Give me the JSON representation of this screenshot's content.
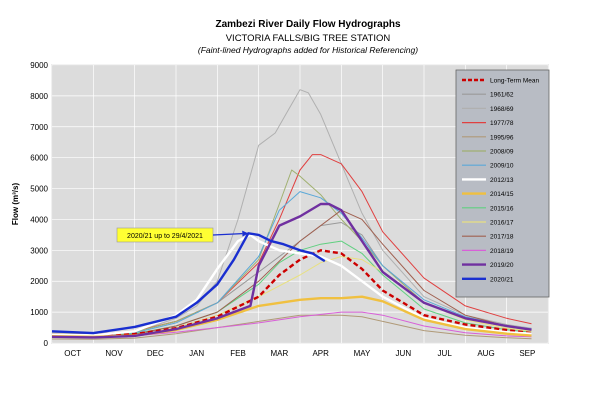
{
  "chart_data": {
    "type": "line",
    "title": "Zambezi River Daily Flow Hydrographs",
    "subtitle": "VICTORIA FALLS/BIG TREE STATION",
    "note": "(Faint-lined Hydrographs added for Historical Referencing)",
    "ylabel": "Flow (m³/s)",
    "xlabel": "",
    "ylim": [
      0,
      9000
    ],
    "yticks": [
      0,
      1000,
      2000,
      3000,
      4000,
      5000,
      6000,
      7000,
      8000,
      9000
    ],
    "months": [
      "OCT",
      "NOV",
      "DEC",
      "JAN",
      "FEB",
      "MAR",
      "APR",
      "MAY",
      "JUN",
      "JUL",
      "AUG",
      "SEP"
    ],
    "grid": true,
    "legend_position": "right",
    "annotation": {
      "text": "2020/21 up to 29/4/2021",
      "points_to_month": 4.75,
      "points_to_value": 3550
    },
    "series": [
      {
        "name": "Long-Term Mean",
        "color": "#cc0000",
        "dashed": true,
        "bold": true,
        "x": [
          0,
          1,
          2,
          3,
          4,
          5,
          5.5,
          6,
          6.5,
          7,
          7.5,
          8,
          9,
          10,
          11,
          11.6
        ],
        "y": [
          250,
          230,
          290,
          480,
          850,
          1500,
          2200,
          2700,
          3000,
          2900,
          2400,
          1700,
          900,
          600,
          420,
          320
        ]
      },
      {
        "name": "1961/62",
        "color": "#9a9a9a",
        "x": [
          0,
          1,
          2,
          3,
          4,
          5,
          6,
          6.5,
          7,
          7.5,
          8,
          9,
          10,
          11,
          11.6
        ],
        "y": [
          350,
          300,
          360,
          700,
          1300,
          2300,
          3300,
          3800,
          3900,
          3500,
          2500,
          1300,
          800,
          550,
          420
        ]
      },
      {
        "name": "1968/69",
        "color": "#b0b0b0",
        "x": [
          0,
          1,
          2,
          3,
          3.5,
          4,
          4.5,
          5,
          5.4,
          5.7,
          6,
          6.2,
          6.5,
          7,
          7.5,
          8,
          9,
          10,
          11,
          11.6
        ],
        "y": [
          280,
          260,
          340,
          800,
          1200,
          2000,
          4000,
          6400,
          6800,
          7500,
          8200,
          8100,
          7400,
          5800,
          4200,
          3000,
          1500,
          900,
          600,
          480
        ]
      },
      {
        "name": "1977/78",
        "color": "#e04040",
        "x": [
          0,
          1,
          2,
          3,
          4,
          5,
          5.5,
          6,
          6.3,
          6.5,
          7,
          7.5,
          8,
          9,
          10,
          11,
          11.6
        ],
        "y": [
          300,
          280,
          380,
          700,
          1300,
          2600,
          4000,
          5600,
          6100,
          6100,
          5800,
          4900,
          3600,
          2100,
          1200,
          800,
          620
        ]
      },
      {
        "name": "1995/96",
        "color": "#b09a78",
        "x": [
          0,
          1,
          2,
          3,
          4,
          5,
          6,
          7,
          7.5,
          8,
          9,
          10,
          11,
          11.6
        ],
        "y": [
          130,
          120,
          160,
          300,
          500,
          700,
          900,
          900,
          850,
          700,
          400,
          250,
          170,
          140
        ]
      },
      {
        "name": "2008/09",
        "color": "#a0b070",
        "x": [
          0,
          1,
          2,
          3,
          4,
          5,
          5.5,
          5.8,
          6,
          6.5,
          7,
          7.5,
          8,
          9,
          10,
          11,
          11.6
        ],
        "y": [
          300,
          280,
          360,
          700,
          1300,
          2700,
          4500,
          5600,
          5400,
          4800,
          4000,
          3300,
          2500,
          1300,
          800,
          520,
          420
        ]
      },
      {
        "name": "2009/10",
        "color": "#5aa8d8",
        "x": [
          0,
          1,
          2,
          3,
          4,
          5,
          5.5,
          6,
          6.5,
          7,
          7.5,
          8,
          9,
          10,
          11,
          11.6
        ],
        "y": [
          280,
          260,
          330,
          650,
          1300,
          2800,
          4300,
          4900,
          4700,
          4200,
          3400,
          2500,
          1400,
          850,
          560,
          460
        ]
      },
      {
        "name": "2012/13",
        "color": "#ffffff",
        "bold": true,
        "x": [
          0,
          1,
          2,
          3,
          3.5,
          4,
          4.5,
          4.8,
          5,
          5.5,
          6,
          6.5,
          7,
          7.5,
          8,
          9,
          10,
          11,
          11.6
        ],
        "y": [
          270,
          250,
          380,
          900,
          1400,
          2400,
          3300,
          3500,
          3300,
          3000,
          2900,
          2800,
          2500,
          2000,
          1500,
          800,
          500,
          350,
          300
        ]
      },
      {
        "name": "2014/15",
        "color": "#f0c040",
        "bold": true,
        "x": [
          0,
          1,
          2,
          3,
          4,
          5,
          6,
          6.5,
          7,
          7.5,
          8,
          9,
          10,
          11,
          11.6
        ],
        "y": [
          220,
          200,
          240,
          420,
          750,
          1200,
          1400,
          1450,
          1450,
          1500,
          1350,
          750,
          450,
          300,
          240
        ]
      },
      {
        "name": "2015/16",
        "color": "#60d080",
        "x": [
          0,
          1,
          2,
          3,
          4,
          5,
          5.5,
          6,
          6.5,
          7,
          7.5,
          8,
          9,
          10,
          11,
          11.6
        ],
        "y": [
          260,
          240,
          300,
          550,
          1000,
          1900,
          2600,
          3000,
          3200,
          3300,
          2900,
          2200,
          1100,
          650,
          430,
          350
        ]
      },
      {
        "name": "2016/17",
        "color": "#e8e080",
        "x": [
          0,
          1,
          2,
          3,
          4,
          5,
          6,
          6.5,
          7,
          7.5,
          8,
          9,
          10,
          11,
          11.6
        ],
        "y": [
          220,
          200,
          250,
          500,
          900,
          1500,
          2200,
          2600,
          2800,
          2700,
          2300,
          1300,
          750,
          480,
          380
        ]
      },
      {
        "name": "2017/18",
        "color": "#a06050",
        "x": [
          0,
          1,
          2,
          3,
          4,
          5,
          6,
          7,
          7.5,
          8,
          9,
          10,
          11,
          11.6
        ],
        "y": [
          250,
          230,
          280,
          550,
          1000,
          2000,
          3300,
          4300,
          4000,
          3200,
          1700,
          900,
          550,
          420
        ]
      },
      {
        "name": "2018/19",
        "color": "#d860d8",
        "x": [
          0,
          1,
          2,
          3,
          4,
          5,
          6,
          7,
          7.5,
          8,
          9,
          10,
          11,
          11.6
        ],
        "y": [
          220,
          200,
          230,
          350,
          500,
          650,
          850,
          1000,
          1000,
          900,
          550,
          330,
          230,
          200
        ]
      },
      {
        "name": "2019/20",
        "color": "#7030a0",
        "bold": true,
        "x": [
          0,
          1,
          2,
          3,
          4,
          4.8,
          5,
          5.5,
          6,
          6.5,
          6.7,
          7,
          7.5,
          8,
          9,
          10,
          11,
          11.6
        ],
        "y": [
          200,
          180,
          230,
          450,
          800,
          1200,
          2500,
          3800,
          4100,
          4500,
          4500,
          4300,
          3300,
          2300,
          1300,
          800,
          550,
          430
        ]
      },
      {
        "name": "2020/21",
        "color": "#1a2fd0",
        "bold": true,
        "x": [
          0,
          1,
          2,
          3,
          3.5,
          4,
          4.4,
          4.75,
          5,
          5.3,
          5.6,
          6,
          6.3,
          6.6
        ],
        "y": [
          380,
          320,
          520,
          850,
          1300,
          1900,
          2700,
          3550,
          3500,
          3300,
          3200,
          3000,
          2900,
          2650
        ]
      }
    ]
  }
}
